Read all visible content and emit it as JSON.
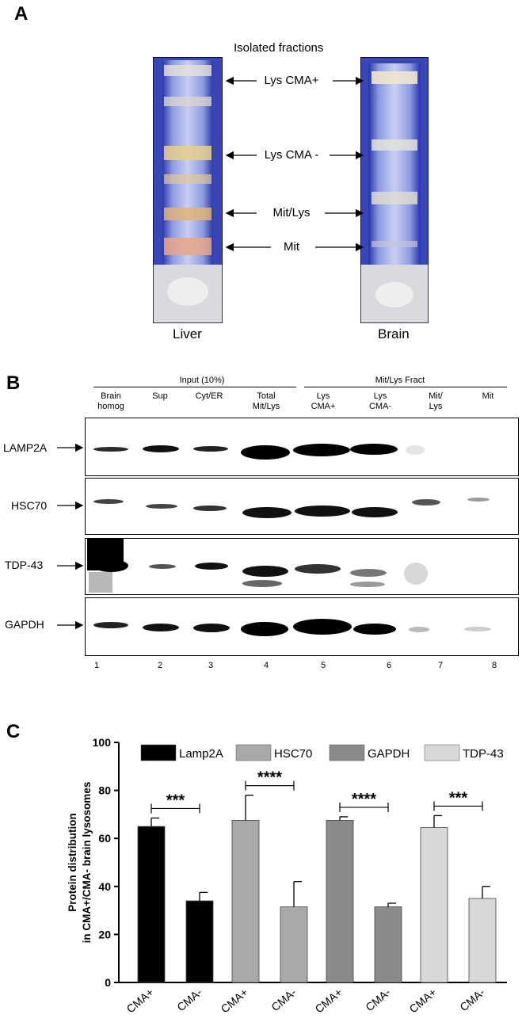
{
  "panel_a": {
    "letter": "A",
    "title": "Isolated fractions",
    "fractions": [
      "Lys CMA+",
      "Lys CMA -",
      "Mit/Lys",
      "Mit"
    ],
    "tubes": [
      "Liver",
      "Brain"
    ]
  },
  "panel_b": {
    "letter": "B",
    "group1": "Input (10%)",
    "group2": "Mit/Lys Fract",
    "lanes": [
      {
        "label": "Brain\nhomog",
        "num": "1"
      },
      {
        "label": "Sup",
        "num": "2"
      },
      {
        "label": "Cyt/ER",
        "num": "3"
      },
      {
        "label": "Total\nMit/Lys",
        "num": "4"
      },
      {
        "label": "Lys\nCMA+",
        "num": "5"
      },
      {
        "label": "Lys\nCMA-",
        "num": "6"
      },
      {
        "label": "Mit/\nLys",
        "num": "7"
      },
      {
        "label": "Mit",
        "num": "8"
      }
    ],
    "blots": [
      "LAMP2A",
      "HSC70",
      "TDP-43",
      "GAPDH"
    ]
  },
  "panel_c": {
    "letter": "C",
    "chart_data": {
      "type": "bar",
      "ylabel": "Protein distribution\nin CMA+/CMA- brain lysosomes",
      "ylim": [
        0,
        100
      ],
      "yticks": [
        0,
        20,
        40,
        60,
        80,
        100
      ],
      "categories": [
        "CMA+",
        "CMA-"
      ],
      "series": [
        {
          "name": "Lamp2A",
          "color": "#000000",
          "values": [
            65,
            34
          ],
          "errors": [
            3.5,
            3.5
          ],
          "significance": "***"
        },
        {
          "name": "HSC70",
          "color": "#a9a9a9",
          "values": [
            67.5,
            31.5
          ],
          "errors": [
            10.5,
            10.5
          ],
          "significance": "****"
        },
        {
          "name": "GAPDH",
          "color": "#8a8a8a",
          "values": [
            67.5,
            31.5
          ],
          "errors": [
            1.5,
            1.5
          ],
          "significance": "****"
        },
        {
          "name": "TDP-43",
          "color": "#d8d8d8",
          "values": [
            64.5,
            35
          ],
          "errors": [
            5,
            5
          ],
          "significance": "***"
        }
      ],
      "legend": "top"
    }
  }
}
